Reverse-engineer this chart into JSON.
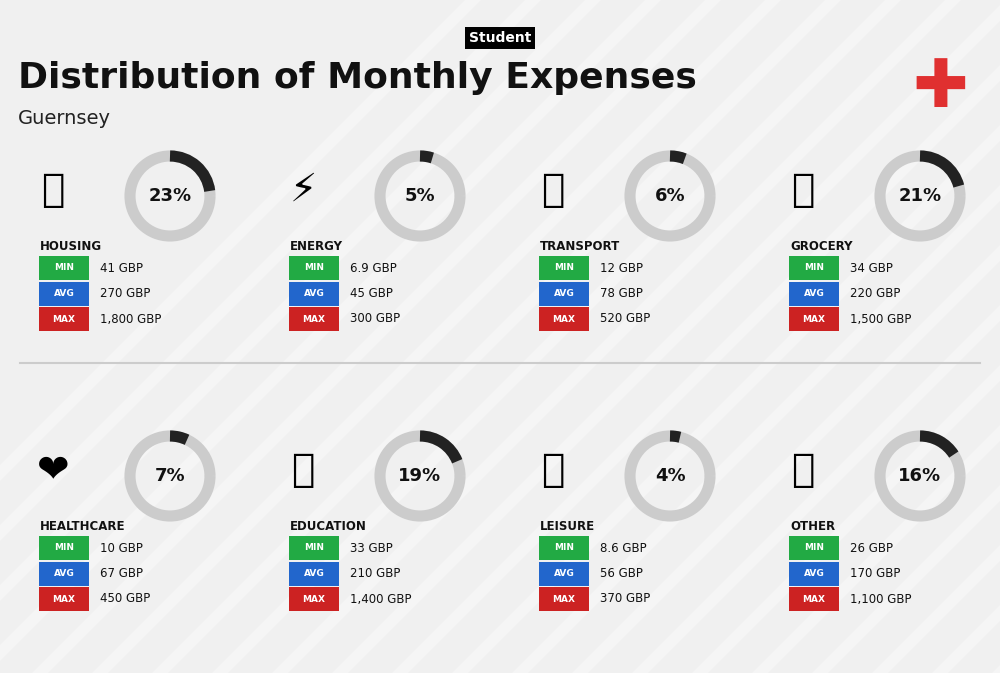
{
  "title": "Distribution of Monthly Expenses",
  "subtitle": "Student",
  "location": "Guernsey",
  "bg_color": "#f0f0f0",
  "categories": [
    {
      "name": "HOUSING",
      "pct": 23,
      "min": "41 GBP",
      "avg": "270 GBP",
      "max": "1,800 GBP",
      "row": 0,
      "col": 0
    },
    {
      "name": "ENERGY",
      "pct": 5,
      "min": "6.9 GBP",
      "avg": "45 GBP",
      "max": "300 GBP",
      "row": 0,
      "col": 1
    },
    {
      "name": "TRANSPORT",
      "pct": 6,
      "min": "12 GBP",
      "avg": "78 GBP",
      "max": "520 GBP",
      "row": 0,
      "col": 2
    },
    {
      "name": "GROCERY",
      "pct": 21,
      "min": "34 GBP",
      "avg": "220 GBP",
      "max": "1,500 GBP",
      "row": 0,
      "col": 3
    },
    {
      "name": "HEALTHCARE",
      "pct": 7,
      "min": "10 GBP",
      "avg": "67 GBP",
      "max": "450 GBP",
      "row": 1,
      "col": 0
    },
    {
      "name": "EDUCATION",
      "pct": 19,
      "min": "33 GBP",
      "avg": "210 GBP",
      "max": "1,400 GBP",
      "row": 1,
      "col": 1
    },
    {
      "name": "LEISURE",
      "pct": 4,
      "min": "8.6 GBP",
      "avg": "56 GBP",
      "max": "370 GBP",
      "row": 1,
      "col": 2
    },
    {
      "name": "OTHER",
      "pct": 16,
      "min": "26 GBP",
      "avg": "170 GBP",
      "max": "1,100 GBP",
      "row": 1,
      "col": 3
    }
  ],
  "min_color": "#22aa44",
  "avg_color": "#2266cc",
  "max_color": "#cc2222",
  "label_color": "#ffffff",
  "arc_color": "#222222",
  "arc_bg_color": "#cccccc"
}
